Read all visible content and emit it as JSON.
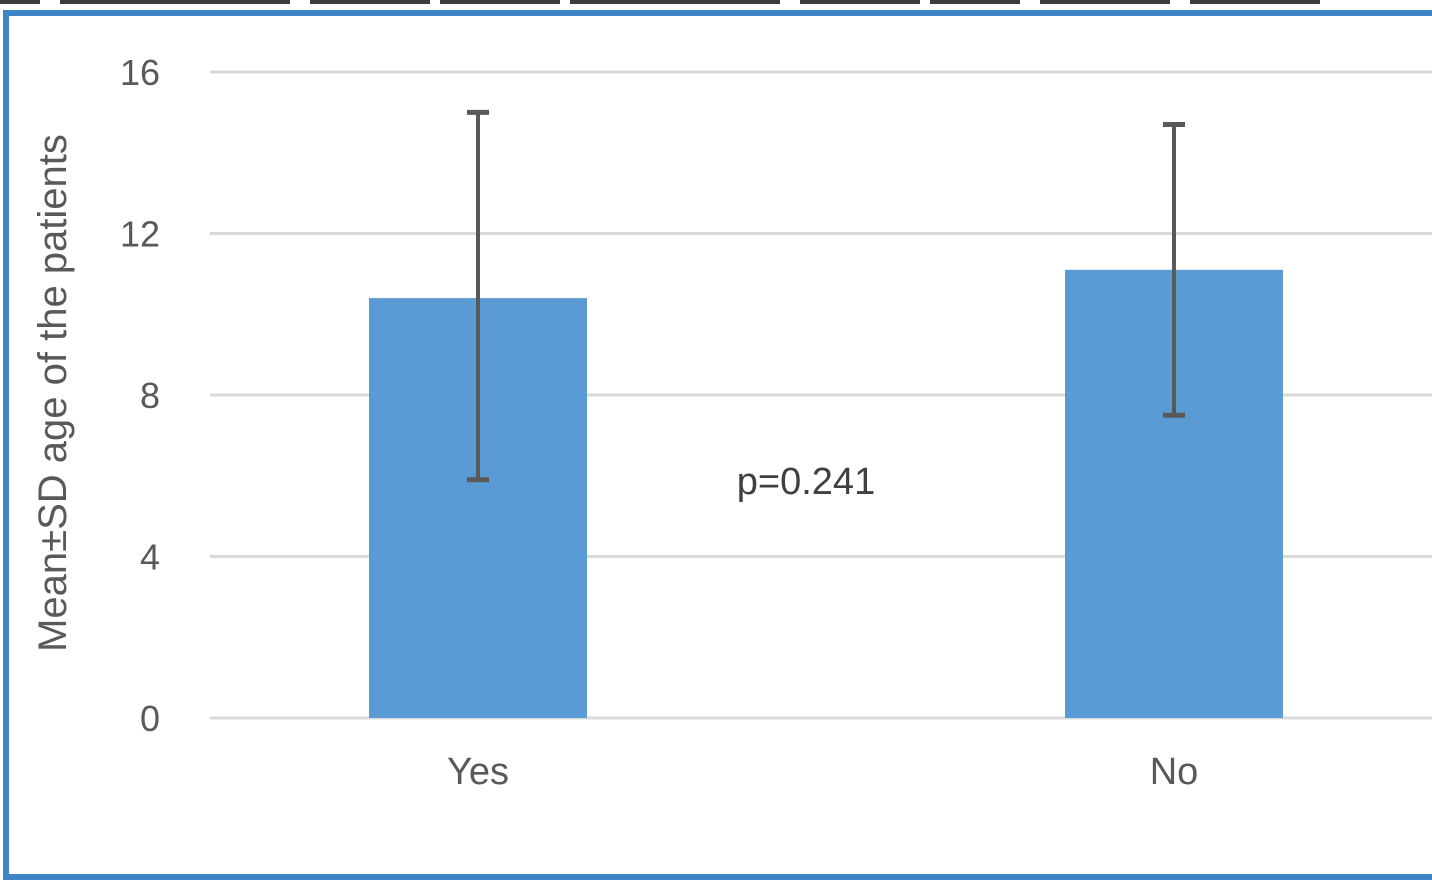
{
  "theme": {
    "frame": "#3d85c6",
    "bar": "#5b9bd5",
    "grid": "#d9d9d9",
    "axis_text": "#595959",
    "error_bar": "#595959",
    "background": "#ffffff"
  },
  "chart_data": {
    "type": "bar",
    "categories": [
      "Yes",
      "No"
    ],
    "series": [
      {
        "values": [
          10.4,
          11.1
        ],
        "error_low": [
          5.9,
          7.5
        ],
        "error_high": [
          15.0,
          14.7
        ]
      }
    ],
    "title": "",
    "xlabel": "",
    "ylabel": "Mean±SD age of the patients",
    "ylim": [
      0,
      16
    ],
    "yticks": [
      0,
      4,
      8,
      12,
      16
    ],
    "grid": true,
    "legend": "none",
    "annotations": [
      {
        "text": "p=0.241"
      }
    ]
  }
}
